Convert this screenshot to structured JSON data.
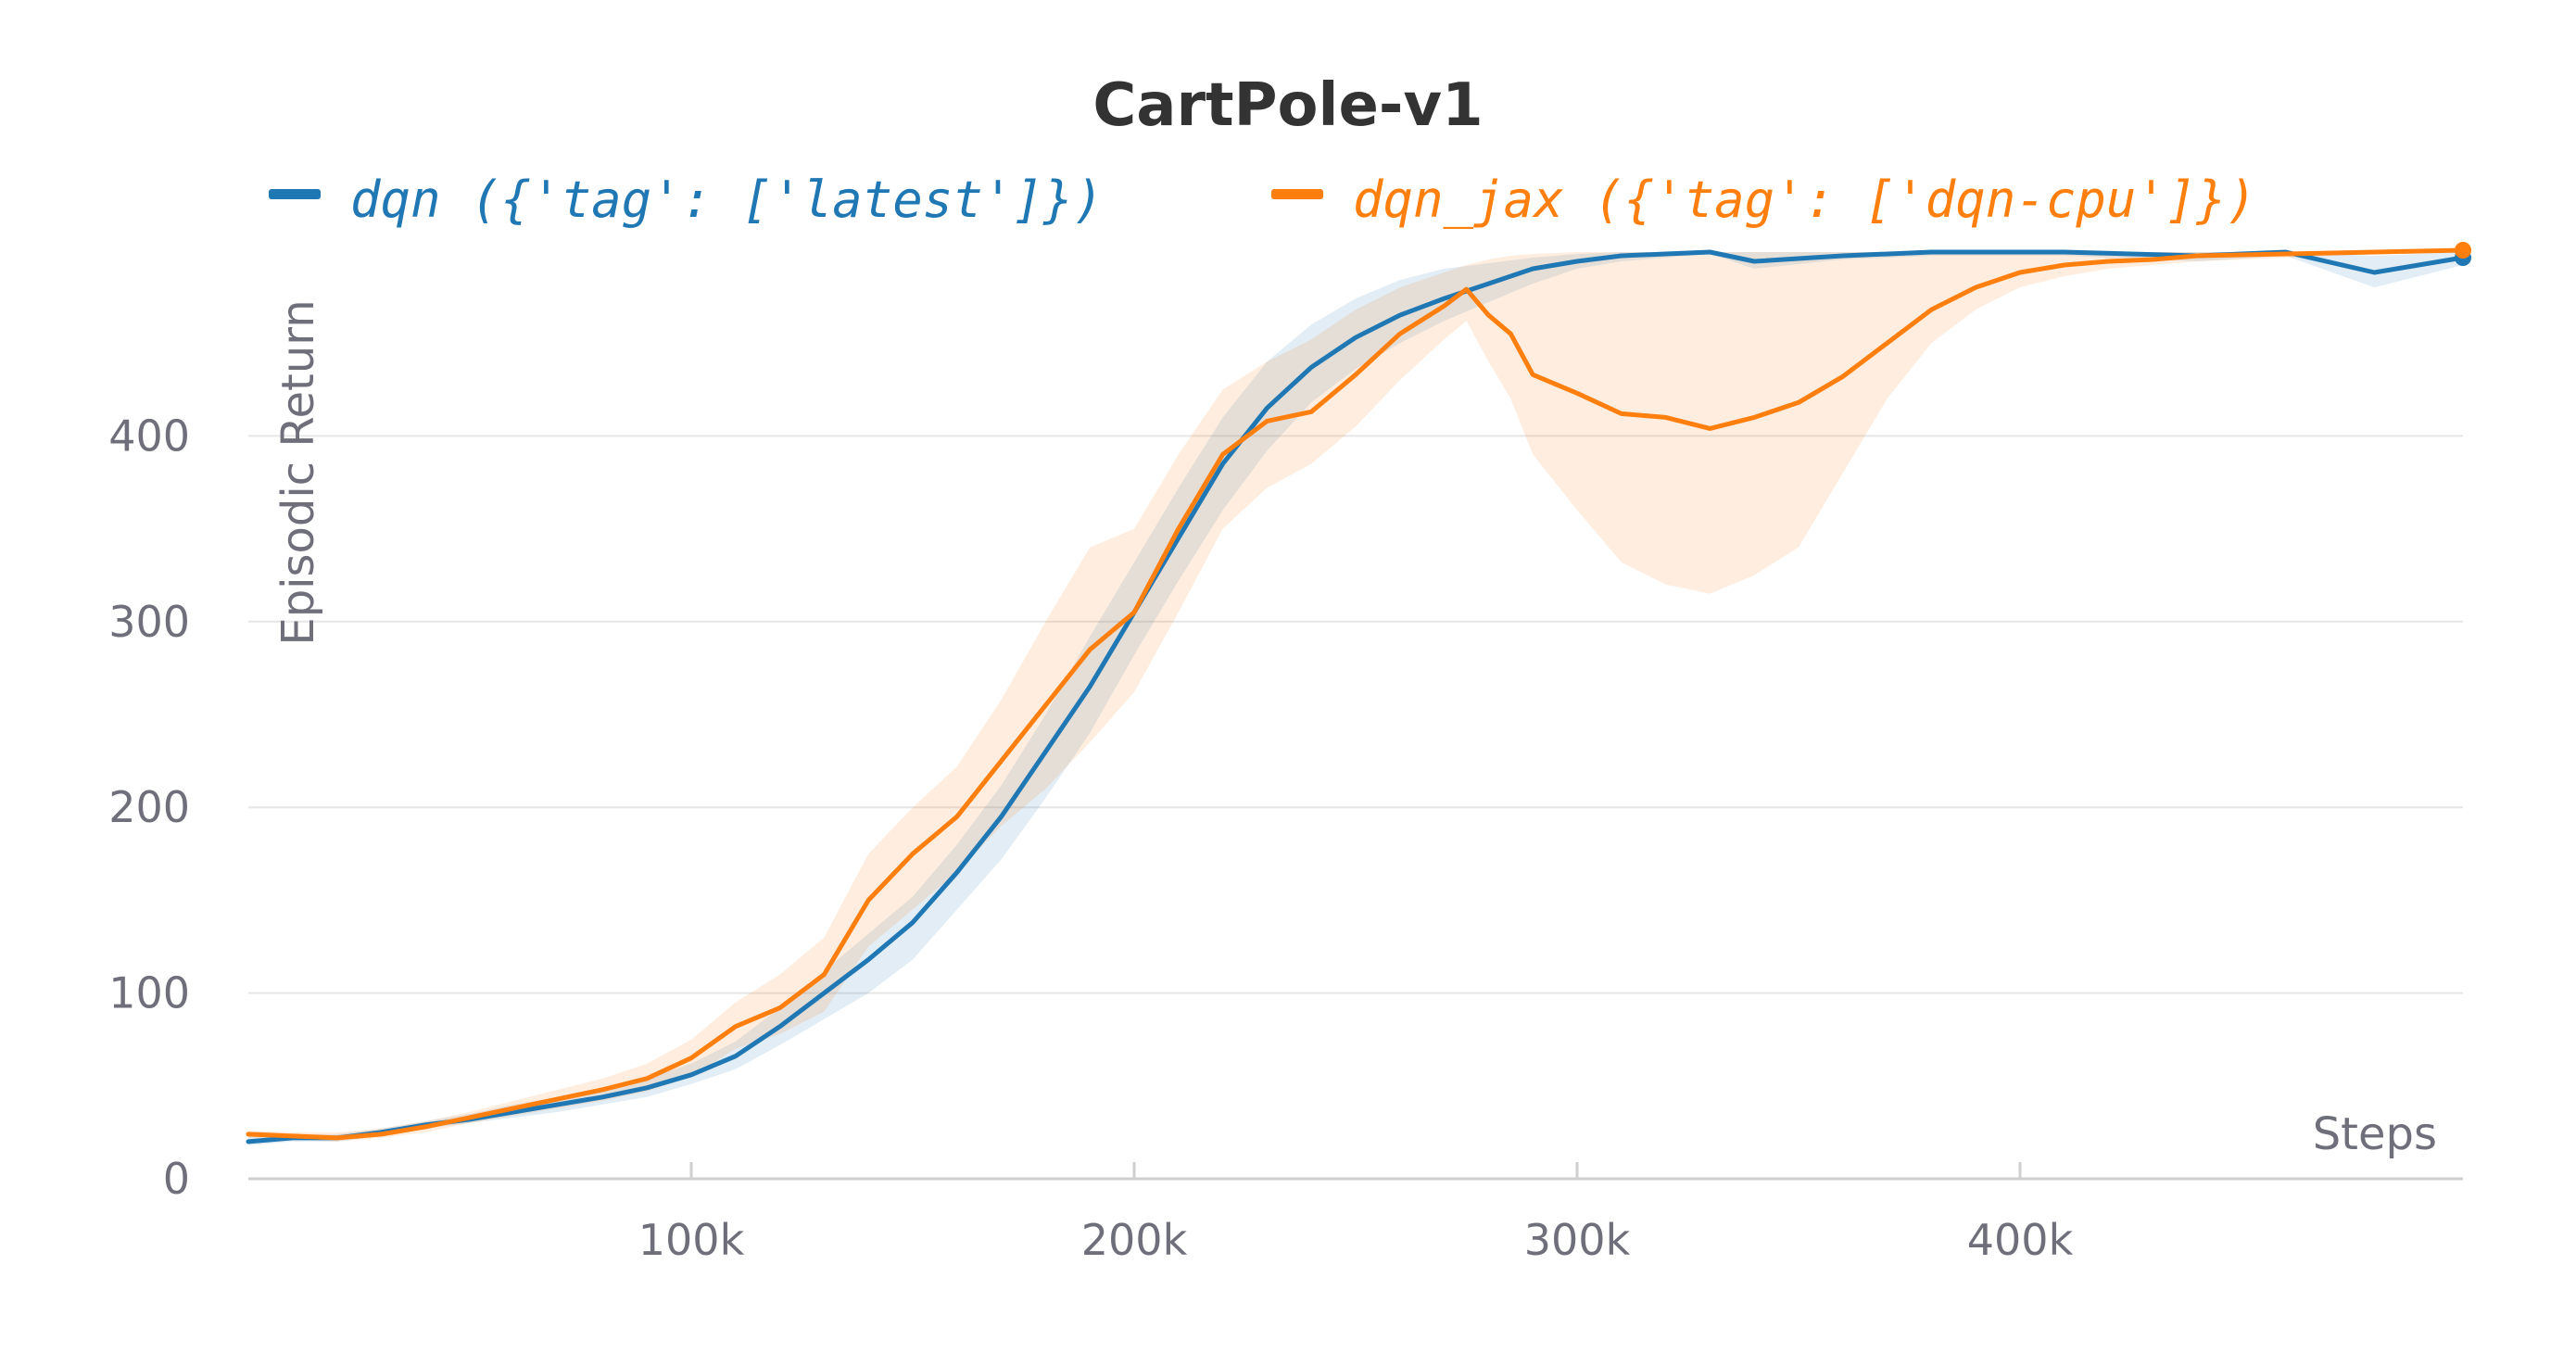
{
  "chart_data": {
    "type": "line",
    "title": "CartPole-v1",
    "xlabel": "Steps",
    "ylabel": "Episodic Return",
    "xlim": [
      0,
      500000
    ],
    "ylim": [
      0,
      500
    ],
    "grid": true,
    "legend_position": "top",
    "x_ticks": [
      {
        "value": 100000,
        "label": "100k"
      },
      {
        "value": 200000,
        "label": "200k"
      },
      {
        "value": 300000,
        "label": "300k"
      },
      {
        "value": 400000,
        "label": "400k"
      }
    ],
    "y_ticks": [
      {
        "value": 0,
        "label": "0"
      },
      {
        "value": 100,
        "label": "100"
      },
      {
        "value": 200,
        "label": "200"
      },
      {
        "value": 300,
        "label": "300"
      },
      {
        "value": 400,
        "label": "400"
      }
    ],
    "series": [
      {
        "name": "dqn ({'tag': ['latest']})",
        "color": "#1f77b4",
        "x": [
          0,
          10000,
          20000,
          30000,
          40000,
          50000,
          60000,
          70000,
          80000,
          90000,
          100000,
          110000,
          120000,
          130000,
          140000,
          150000,
          160000,
          170000,
          180000,
          190000,
          200000,
          210000,
          220000,
          230000,
          240000,
          250000,
          260000,
          270000,
          280000,
          290000,
          300000,
          310000,
          320000,
          330000,
          340000,
          360000,
          380000,
          410000,
          440000,
          460000,
          480000,
          500000
        ],
        "values": [
          20,
          22,
          22,
          25,
          29,
          32,
          36,
          40,
          44,
          49,
          56,
          66,
          82,
          100,
          118,
          138,
          165,
          195,
          230,
          265,
          305,
          345,
          385,
          415,
          437,
          453,
          465,
          474,
          482,
          490,
          494,
          497,
          498,
          499,
          494,
          497,
          499,
          499,
          497,
          499,
          488,
          496
        ],
        "band_upper": [
          23,
          24,
          24,
          27,
          31,
          35,
          40,
          44,
          48,
          54,
          62,
          74,
          92,
          112,
          132,
          152,
          180,
          212,
          250,
          292,
          332,
          372,
          410,
          440,
          460,
          474,
          484,
          490,
          493,
          496,
          498,
          499,
          499,
          499,
          499,
          499,
          499,
          499,
          499,
          499,
          497,
          499
        ],
        "band_lower": [
          18,
          20,
          20,
          23,
          27,
          30,
          33,
          36,
          40,
          44,
          51,
          59,
          72,
          86,
          100,
          118,
          145,
          172,
          205,
          240,
          282,
          322,
          360,
          392,
          418,
          436,
          450,
          462,
          472,
          482,
          490,
          494,
          496,
          498,
          490,
          495,
          497,
          497,
          494,
          497,
          480,
          492
        ]
      },
      {
        "name": "dqn_jax ({'tag': ['dqn-cpu']})",
        "color": "#ff7f0e",
        "x": [
          0,
          10000,
          20000,
          30000,
          40000,
          50000,
          60000,
          70000,
          80000,
          90000,
          100000,
          110000,
          120000,
          130000,
          140000,
          150000,
          160000,
          170000,
          180000,
          190000,
          200000,
          210000,
          220000,
          230000,
          240000,
          250000,
          260000,
          270000,
          275000,
          280000,
          285000,
          290000,
          300000,
          310000,
          320000,
          330000,
          340000,
          350000,
          360000,
          370000,
          380000,
          390000,
          400000,
          410000,
          420000,
          430000,
          440000,
          460000,
          480000,
          500000
        ],
        "values": [
          24,
          23,
          22,
          24,
          28,
          33,
          38,
          43,
          48,
          54,
          65,
          82,
          92,
          110,
          150,
          175,
          195,
          225,
          255,
          285,
          305,
          350,
          390,
          408,
          413,
          433,
          455,
          470,
          479,
          465,
          455,
          433,
          423,
          412,
          410,
          404,
          410,
          418,
          432,
          450,
          468,
          480,
          488,
          492,
          494,
          495,
          497,
          498,
          499,
          500
        ],
        "band_upper": [
          26,
          25,
          25,
          27,
          31,
          36,
          42,
          48,
          54,
          62,
          75,
          95,
          110,
          130,
          175,
          200,
          222,
          258,
          300,
          340,
          350,
          390,
          425,
          440,
          452,
          468,
          480,
          488,
          492,
          495,
          497,
          498,
          499,
          499,
          499,
          499,
          499,
          499,
          499,
          499,
          499,
          499,
          499,
          499,
          499,
          499,
          499,
          499,
          499,
          500
        ],
        "band_lower": [
          22,
          21,
          20,
          22,
          25,
          30,
          34,
          38,
          42,
          47,
          55,
          70,
          78,
          90,
          125,
          145,
          165,
          190,
          210,
          235,
          262,
          305,
          350,
          372,
          385,
          405,
          430,
          452,
          462,
          440,
          420,
          390,
          360,
          332,
          320,
          315,
          325,
          340,
          380,
          420,
          450,
          468,
          480,
          486,
          490,
          492,
          494,
          496,
          498,
          499
        ]
      }
    ]
  }
}
